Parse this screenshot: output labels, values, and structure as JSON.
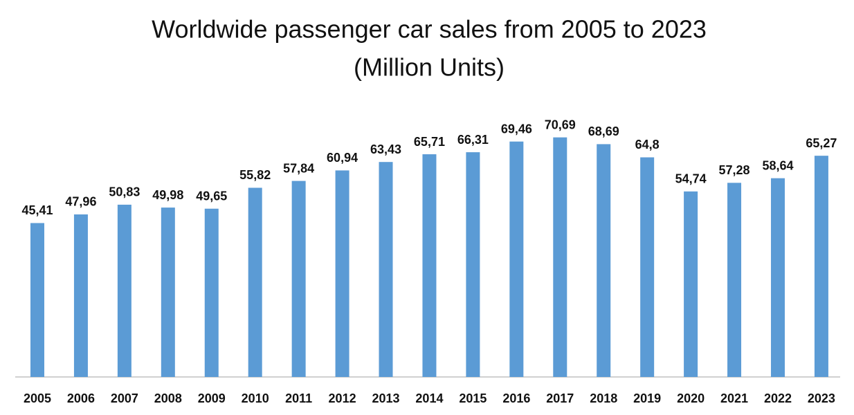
{
  "chart_data": {
    "type": "bar",
    "title": "Worldwide passenger car sales from 2005 to 2023",
    "subtitle": "(Million Units)",
    "categories": [
      "2005",
      "2006",
      "2007",
      "2008",
      "2009",
      "2010",
      "2011",
      "2012",
      "2013",
      "2014",
      "2015",
      "2016",
      "2017",
      "2018",
      "2019",
      "2020",
      "2021",
      "2022",
      "2023"
    ],
    "values": [
      45.41,
      47.96,
      50.83,
      49.98,
      49.65,
      55.82,
      57.84,
      60.94,
      63.43,
      65.71,
      66.31,
      69.46,
      70.69,
      68.69,
      64.8,
      54.74,
      57.28,
      58.64,
      65.27
    ],
    "value_labels": [
      "45,41",
      "47,96",
      "50,83",
      "49,98",
      "49,65",
      "55,82",
      "57,84",
      "60,94",
      "63,43",
      "65,71",
      "66,31",
      "69,46",
      "70,69",
      "68,69",
      "64,8",
      "54,74",
      "57,28",
      "58,64",
      "65,27"
    ],
    "color": "#5b9bd5",
    "ylim": [
      0,
      80
    ],
    "grid": false
  }
}
